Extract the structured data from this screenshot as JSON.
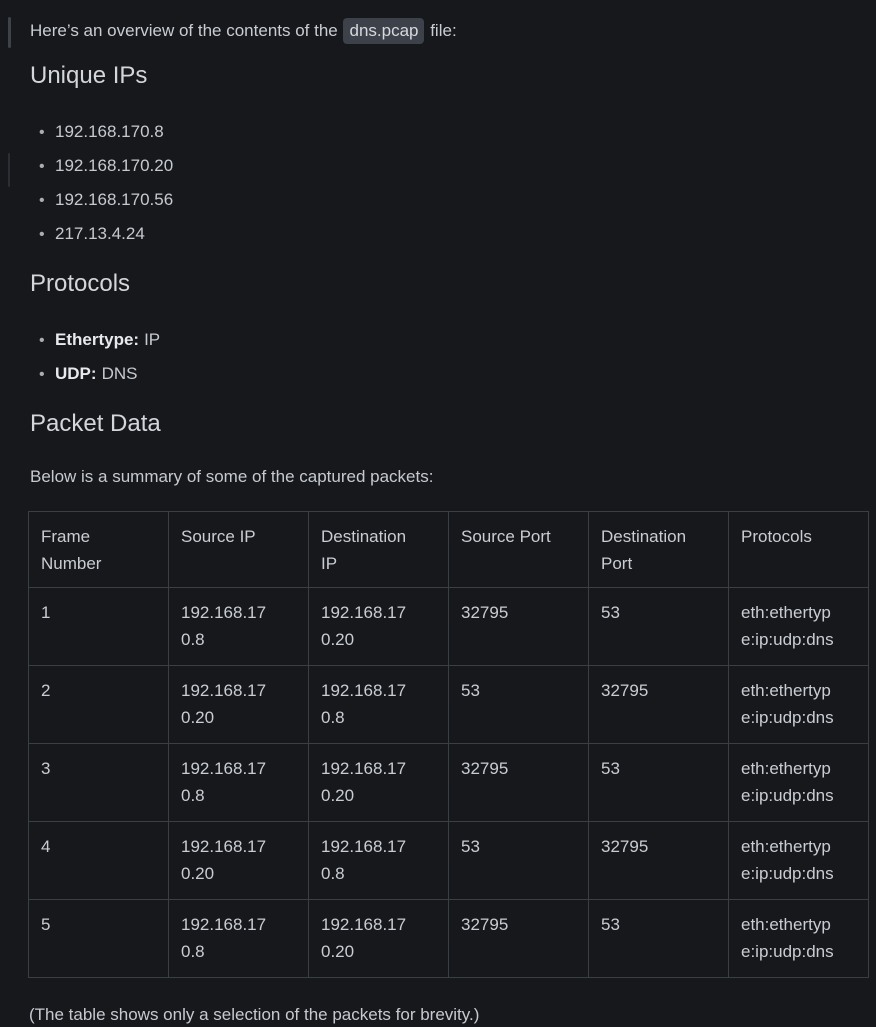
{
  "intro": {
    "prefix": "Here’s an overview of the contents of the ",
    "code": "dns.pcap",
    "suffix": " file:"
  },
  "icons": {
    "bullet": "•"
  },
  "sections": {
    "unique_ips": {
      "heading": "Unique IPs",
      "items": [
        "192.168.170.8",
        "192.168.170.20",
        "192.168.170.56",
        "217.13.4.24"
      ]
    },
    "protocols": {
      "heading": "Protocols",
      "items": [
        {
          "label": "Ethertype:",
          "value": "IP"
        },
        {
          "label": "UDP:",
          "value": "DNS"
        }
      ]
    },
    "packet_data": {
      "heading": "Packet Data",
      "intro": "Below is a summary of some of the captured packets:",
      "table": {
        "columns": [
          "Frame Number",
          "Source IP",
          "Destination IP",
          "Source Port",
          "Destination Port",
          "Protocols"
        ],
        "rows": [
          [
            "1",
            "192.168.170.8",
            "192.168.170.20",
            "32795",
            "53",
            "eth:ethertype:ip:udp:dns"
          ],
          [
            "2",
            "192.168.170.20",
            "192.168.170.8",
            "53",
            "32795",
            "eth:ethertype:ip:udp:dns"
          ],
          [
            "3",
            "192.168.170.8",
            "192.168.170.20",
            "32795",
            "53",
            "eth:ethertype:ip:udp:dns"
          ],
          [
            "4",
            "192.168.170.20",
            "192.168.170.8",
            "53",
            "32795",
            "eth:ethertype:ip:udp:dns"
          ],
          [
            "5",
            "192.168.170.8",
            "192.168.170.20",
            "32795",
            "53",
            "eth:ethertype:ip:udp:dns"
          ]
        ]
      },
      "footnote": "(The table shows only a selection of the packets for brevity.)"
    }
  },
  "colors": {
    "background": "#16181c",
    "text": "#c9cdd3",
    "heading": "#d3d6db",
    "bold_text": "#e7e9ec",
    "inline_code_background": "#3d4149",
    "table_border": "#3a3e45",
    "bullet": "#a9aeb5",
    "gutter_bar_top": "#3e434a",
    "gutter_bar_bottom": "#2b2f35"
  }
}
